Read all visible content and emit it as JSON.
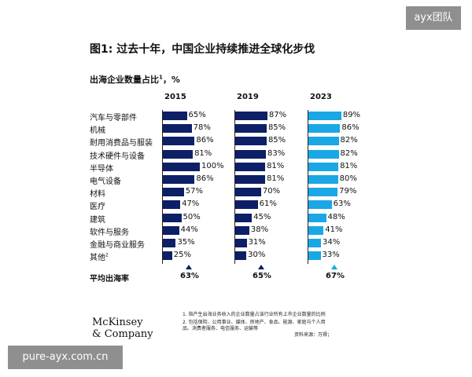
{
  "watermark_top": "ayx团队",
  "watermark_bottom": "pure-ayx.com.cn",
  "chart_data": {
    "type": "bar",
    "title": "图1: 过去十年，中国企业持续推进全球化步伐",
    "subtitle": "出海企业数量占比",
    "subtitle_sup": "1",
    "subtitle_unit": "，%",
    "categories": [
      "汽车与零部件",
      "机械",
      "耐用消费品与服装",
      "技术硬件与设备",
      "半导体",
      "电气设备",
      "材料",
      "医疗",
      "建筑",
      "软件与服务",
      "金融与商业服务",
      "其他"
    ],
    "category_sups": [
      "",
      "",
      "",
      "",
      "",
      "",
      "",
      "",
      "",
      "",
      "",
      "2"
    ],
    "series": [
      {
        "name": "2015",
        "color": "#0d1f66",
        "values": [
          65,
          78,
          86,
          81,
          100,
          86,
          57,
          47,
          50,
          44,
          35,
          25
        ]
      },
      {
        "name": "2019",
        "color": "#0d1f66",
        "values": [
          87,
          85,
          85,
          83,
          81,
          81,
          70,
          61,
          45,
          38,
          31,
          30
        ]
      },
      {
        "name": "2023",
        "color": "#1aa7e6",
        "values": [
          89,
          86,
          82,
          82,
          81,
          80,
          79,
          63,
          48,
          41,
          34,
          33
        ]
      }
    ],
    "value_suffix": "%",
    "average_label": "平均出海率",
    "averages": [
      "63%",
      "65%",
      "67%"
    ],
    "xlim": [
      0,
      100
    ]
  },
  "notes": [
    "1.  指产生出海业务收入的企业数量占该行业所有上市企业数量的比例",
    "2.  包括保险、公用事业、媒体、房地产、食品、能源、家庭与个人用",
    "     品、消费者服务、电信服务、运输等"
  ],
  "source": "资料来源：万得；",
  "logo": {
    "line1": "McKinsey",
    "line2": "& Company"
  }
}
